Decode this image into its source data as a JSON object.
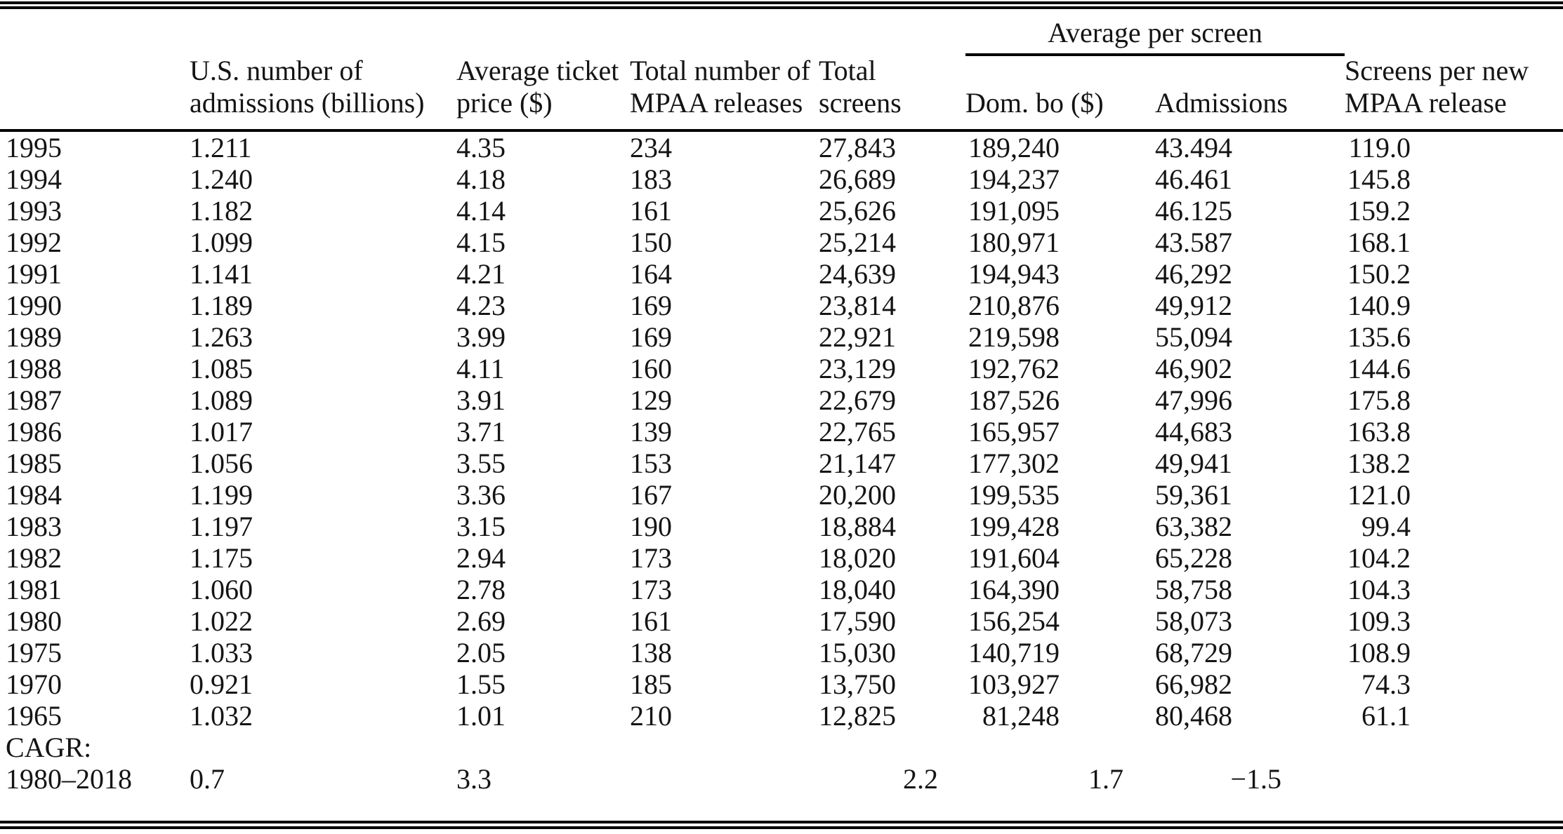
{
  "chart_data": {
    "type": "table",
    "spanner": {
      "label": "Average per screen",
      "spans_columns": [
        "Dom. bo ($)",
        "Admissions"
      ]
    },
    "column_headers": [
      [
        ""
      ],
      [
        "U.S. number of",
        "admissions (billions)"
      ],
      [
        "Average ticket",
        "price ($)"
      ],
      [
        "Total number of",
        "MPAA releases"
      ],
      [
        "Total",
        "screens"
      ],
      [
        "Dom. bo ($)"
      ],
      [
        "Admissions"
      ],
      [
        "Screens per new",
        "MPAA release"
      ]
    ],
    "rows": [
      [
        "1995",
        "1.211",
        "4.35",
        "234",
        "27,843",
        "189,240",
        "43.494",
        "119.0"
      ],
      [
        "1994",
        "1.240",
        "4.18",
        "183",
        "26,689",
        "194,237",
        "46.461",
        "145.8"
      ],
      [
        "1993",
        "1.182",
        "4.14",
        "161",
        "25,626",
        "191,095",
        "46.125",
        "159.2"
      ],
      [
        "1992",
        "1.099",
        "4.15",
        "150",
        "25,214",
        "180,971",
        "43.587",
        "168.1"
      ],
      [
        "1991",
        "1.141",
        "4.21",
        "164",
        "24,639",
        "194,943",
        "46,292",
        "150.2"
      ],
      [
        "1990",
        "1.189",
        "4.23",
        "169",
        "23,814",
        "210,876",
        "49,912",
        "140.9"
      ],
      [
        "1989",
        "1.263",
        "3.99",
        "169",
        "22,921",
        "219,598",
        "55,094",
        "135.6"
      ],
      [
        "1988",
        "1.085",
        "4.11",
        "160",
        "23,129",
        "192,762",
        "46,902",
        "144.6"
      ],
      [
        "1987",
        "1.089",
        "3.91",
        "129",
        "22,679",
        "187,526",
        "47,996",
        "175.8"
      ],
      [
        "1986",
        "1.017",
        "3.71",
        "139",
        "22,765",
        "165,957",
        "44,683",
        "163.8"
      ],
      [
        "1985",
        "1.056",
        "3.55",
        "153",
        "21,147",
        "177,302",
        "49,941",
        "138.2"
      ],
      [
        "1984",
        "1.199",
        "3.36",
        "167",
        "20,200",
        "199,535",
        "59,361",
        "121.0"
      ],
      [
        "1983",
        "1.197",
        "3.15",
        "190",
        "18,884",
        "199,428",
        "63,382",
        "99.4"
      ],
      [
        "1982",
        "1.175",
        "2.94",
        "173",
        "18,020",
        "191,604",
        "65,228",
        "104.2"
      ],
      [
        "1981",
        "1.060",
        "2.78",
        "173",
        "18,040",
        "164,390",
        "58,758",
        "104.3"
      ],
      [
        "1980",
        "1.022",
        "2.69",
        "161",
        "17,590",
        "156,254",
        "58,073",
        "109.3"
      ],
      [
        "1975",
        "1.033",
        "2.05",
        "138",
        "15,030",
        "140,719",
        "68,729",
        "108.9"
      ],
      [
        "1970",
        "0.921",
        "1.55",
        "185",
        "13,750",
        "103,927",
        "66,982",
        "74.3"
      ],
      [
        "1965",
        "1.032",
        "1.01",
        "210",
        "12,825",
        "81,248",
        "80,468",
        "61.1"
      ]
    ],
    "section_label": "CAGR:",
    "summary_row": [
      "1980–2018",
      "0.7",
      "3.3",
      "",
      "2.2",
      "1.7",
      "−1.5",
      ""
    ]
  }
}
